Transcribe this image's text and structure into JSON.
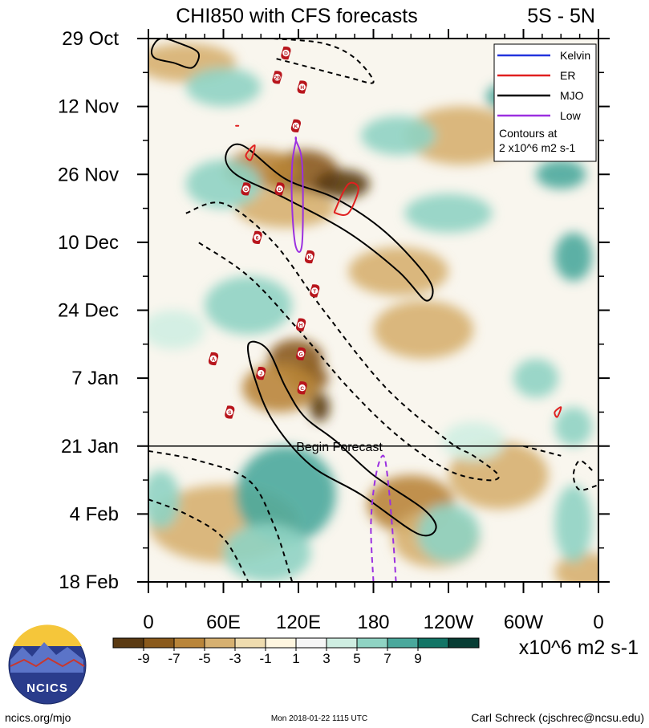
{
  "chart_data": {
    "type": "heatmap",
    "title": "CHI850 with CFS forecasts",
    "region_label": "5S - 5N",
    "x_axis": {
      "labels": [
        "0",
        "60E",
        "120E",
        "180",
        "120W",
        "60W",
        "0"
      ],
      "range_deg_east": [
        0,
        360
      ]
    },
    "y_axis": {
      "labels": [
        "29 Oct",
        "12 Nov",
        "26 Nov",
        "10 Dec",
        "24 Dec",
        "7 Jan",
        "21 Jan",
        "4 Feb",
        "18 Feb"
      ],
      "range_days_from_29oct": [
        0,
        112
      ]
    },
    "forecast_start": {
      "label": "Begin Forecast",
      "day": 84
    },
    "legend": {
      "entries": [
        {
          "name": "Kelvin",
          "color": "#2233dd",
          "style": "solid"
        },
        {
          "name": "ER",
          "color": "#e02020",
          "style": "solid"
        },
        {
          "name": "MJO",
          "color": "#000000",
          "style": "solid"
        },
        {
          "name": "Low",
          "color": "#9b30e0",
          "style": "solid"
        }
      ],
      "note_line1": "Contours at",
      "note_line2": "2 x10^6 m2 s-1"
    },
    "colorbar": {
      "levels": [
        -9,
        -7,
        -5,
        -3,
        -1,
        1,
        3,
        5,
        7,
        9
      ],
      "level_labels": [
        "-9",
        "-7",
        "-5",
        "-3",
        "-1",
        "1",
        "3",
        "5",
        "7",
        "9"
      ],
      "colors": [
        "#5a3a12",
        "#8a5a1c",
        "#b9853a",
        "#d6b070",
        "#efdcaf",
        "#fff6e0",
        "#f6f6f6",
        "#cfeee2",
        "#8fd3c3",
        "#4aa89c",
        "#127566",
        "#073d34"
      ],
      "units": "x10^6 m2 s-1"
    },
    "fields": [
      {
        "lon": 125,
        "day": 28,
        "value": -8,
        "size": [
          28,
          5
        ]
      },
      {
        "lon": 155,
        "day": 30,
        "value": -11,
        "size": [
          22,
          3
        ]
      },
      {
        "lon": 90,
        "day": 27,
        "value": -5,
        "size": [
          30,
          4
        ]
      },
      {
        "lon": 110,
        "day": 35,
        "value": -4,
        "size": [
          40,
          4
        ]
      },
      {
        "lon": 118,
        "day": 66,
        "value": -7,
        "size": [
          22,
          4
        ]
      },
      {
        "lon": 128,
        "day": 70,
        "value": -8,
        "size": [
          16,
          3
        ]
      },
      {
        "lon": 105,
        "day": 72,
        "value": -5,
        "size": [
          30,
          5
        ]
      },
      {
        "lon": 137,
        "day": 76,
        "value": -12,
        "size": [
          8,
          3
        ]
      },
      {
        "lon": 200,
        "day": 48,
        "value": -4,
        "size": [
          40,
          5
        ]
      },
      {
        "lon": 220,
        "day": 60,
        "value": -4,
        "size": [
          40,
          6
        ]
      },
      {
        "lon": 250,
        "day": 20,
        "value": -3,
        "size": [
          45,
          6
        ]
      },
      {
        "lon": 280,
        "day": 90,
        "value": -4,
        "size": [
          40,
          7
        ]
      },
      {
        "lon": 210,
        "day": 96,
        "value": -5,
        "size": [
          35,
          6
        ]
      },
      {
        "lon": 230,
        "day": 103,
        "value": -4,
        "size": [
          35,
          6
        ]
      },
      {
        "lon": 60,
        "day": 100,
        "value": -3,
        "size": [
          60,
          8
        ]
      },
      {
        "lon": 30,
        "day": 5,
        "value": -3,
        "size": [
          40,
          4
        ]
      },
      {
        "lon": 350,
        "day": 110,
        "value": -4,
        "size": [
          25,
          4
        ]
      },
      {
        "lon": 60,
        "day": 30,
        "value": 4,
        "size": [
          30,
          5
        ]
      },
      {
        "lon": 80,
        "day": 55,
        "value": 4,
        "size": [
          35,
          6
        ]
      },
      {
        "lon": 110,
        "day": 94,
        "value": 6,
        "size": [
          40,
          10
        ]
      },
      {
        "lon": 95,
        "day": 106,
        "value": 4,
        "size": [
          35,
          6
        ]
      },
      {
        "lon": 200,
        "day": 20,
        "value": 5,
        "size": [
          30,
          4
        ]
      },
      {
        "lon": 240,
        "day": 36,
        "value": 5,
        "size": [
          35,
          4
        ]
      },
      {
        "lon": 290,
        "day": 12,
        "value": 6,
        "size": [
          20,
          3
        ]
      },
      {
        "lon": 330,
        "day": 28,
        "value": 6,
        "size": [
          20,
          3
        ]
      },
      {
        "lon": 340,
        "day": 45,
        "value": 6,
        "size": [
          15,
          5
        ]
      },
      {
        "lon": 310,
        "day": 70,
        "value": 5,
        "size": [
          18,
          4
        ]
      },
      {
        "lon": 60,
        "day": 10,
        "value": 4,
        "size": [
          30,
          4
        ]
      },
      {
        "lon": 340,
        "day": 80,
        "value": 5,
        "size": [
          15,
          4
        ]
      },
      {
        "lon": 20,
        "day": 60,
        "value": 3,
        "size": [
          25,
          4
        ]
      },
      {
        "lon": 10,
        "day": 95,
        "value": 4,
        "size": [
          15,
          6
        ]
      },
      {
        "lon": 260,
        "day": 83,
        "value": 3,
        "size": [
          25,
          4
        ]
      },
      {
        "lon": 340,
        "day": 100,
        "value": 5,
        "size": [
          15,
          8
        ]
      },
      {
        "lon": 240,
        "day": 102,
        "value": 4,
        "size": [
          25,
          6
        ]
      }
    ],
    "contours": {
      "mjo_solid": [
        [
          [
            3,
            2
          ],
          [
            10,
            0
          ],
          [
            25,
            1
          ],
          [
            40,
            3
          ],
          [
            35,
            6
          ],
          [
            20,
            5
          ],
          [
            5,
            4
          ]
        ],
        [
          [
            62,
            24
          ],
          [
            75,
            22
          ],
          [
            110,
            29
          ],
          [
            150,
            33
          ],
          [
            190,
            40
          ],
          [
            225,
            50
          ],
          [
            222,
            54
          ],
          [
            200,
            48
          ],
          [
            160,
            40
          ],
          [
            110,
            33
          ],
          [
            70,
            28
          ]
        ],
        [
          [
            80,
            63
          ],
          [
            95,
            64
          ],
          [
            110,
            72
          ],
          [
            125,
            78
          ],
          [
            150,
            83
          ],
          [
            180,
            90
          ],
          [
            220,
            97
          ],
          [
            230,
            101
          ],
          [
            215,
            102
          ],
          [
            170,
            94
          ],
          [
            130,
            88
          ],
          [
            100,
            79
          ],
          [
            85,
            70
          ]
        ]
      ],
      "mjo_dashed": [
        [
          [
            100,
            0
          ],
          [
            140,
            1
          ],
          [
            165,
            4
          ],
          [
            180,
            9
          ],
          [
            160,
            8
          ],
          [
            130,
            6
          ],
          [
            100,
            4
          ]
        ],
        [
          [
            30,
            36
          ],
          [
            60,
            34
          ],
          [
            100,
            42
          ],
          [
            140,
            56
          ],
          [
            190,
            72
          ],
          [
            240,
            83
          ],
          [
            260,
            86
          ],
          [
            280,
            90
          ],
          [
            270,
            91
          ],
          [
            240,
            89
          ],
          [
            200,
            82
          ],
          [
            160,
            72
          ],
          [
            120,
            60
          ],
          [
            80,
            49
          ],
          [
            40,
            42
          ]
        ],
        [
          [
            0,
            85
          ],
          [
            40,
            87
          ],
          [
            80,
            91
          ],
          [
            100,
            100
          ],
          [
            115,
            112
          ]
        ],
        [
          [
            0,
            95
          ],
          [
            30,
            98
          ],
          [
            60,
            103
          ],
          [
            80,
            112
          ]
        ],
        [
          [
            355,
            89
          ],
          [
            345,
            87
          ],
          [
            340,
            90
          ],
          [
            345,
            93
          ],
          [
            360,
            92
          ]
        ],
        [
          [
            300,
            84
          ],
          [
            330,
            86
          ]
        ]
      ],
      "er_red": [
        [
          [
            78,
            24
          ],
          [
            85,
            22
          ],
          [
            82,
            25
          ]
        ],
        [
          [
            150,
            35
          ],
          [
            160,
            30
          ],
          [
            168,
            31
          ],
          [
            160,
            36
          ],
          [
            150,
            36
          ]
        ],
        [
          [
            70,
            18
          ],
          [
            72,
            18
          ]
        ],
        [
          [
            325,
            77
          ],
          [
            330,
            76
          ],
          [
            327,
            78
          ]
        ]
      ],
      "low_purple_solid": [
        [
          [
            118,
            21
          ],
          [
            123,
            26
          ],
          [
            123,
            42
          ],
          [
            118,
            43
          ],
          [
            115,
            35
          ],
          [
            115,
            26
          ],
          [
            118,
            21
          ]
        ]
      ],
      "low_purple_dashed": [
        [
          [
            180,
            112
          ],
          [
            178,
            100
          ],
          [
            182,
            90
          ],
          [
            188,
            86
          ],
          [
            192,
            92
          ],
          [
            196,
            104
          ],
          [
            198,
            112
          ]
        ]
      ]
    },
    "markers": [
      {
        "lon": 110,
        "day": 3,
        "label": "D"
      },
      {
        "lon": 103,
        "day": 8,
        "label": "29"
      },
      {
        "lon": 123,
        "day": 10,
        "label": "H"
      },
      {
        "lon": 118,
        "day": 18,
        "label": "K"
      },
      {
        "lon": 78,
        "day": 31,
        "label": "O"
      },
      {
        "lon": 105,
        "day": 31,
        "label": "D"
      },
      {
        "lon": 87,
        "day": 41,
        "label": "6"
      },
      {
        "lon": 129,
        "day": 45,
        "label": "K"
      },
      {
        "lon": 133,
        "day": 52,
        "label": "T"
      },
      {
        "lon": 122,
        "day": 59,
        "label": "H"
      },
      {
        "lon": 122,
        "day": 65,
        "label": "G"
      },
      {
        "lon": 52,
        "day": 66,
        "label": "A"
      },
      {
        "lon": 90,
        "day": 69,
        "label": "J"
      },
      {
        "lon": 123,
        "day": 72,
        "label": "C"
      },
      {
        "lon": 65,
        "day": 77,
        "label": "S"
      }
    ]
  },
  "footer": {
    "logo_text": "NCICS",
    "site": "ncics.org/mjo",
    "timestamp": "Mon 2018-01-22 1115 UTC",
    "author": "Carl Schreck (cjschrec@ncsu.edu)"
  }
}
